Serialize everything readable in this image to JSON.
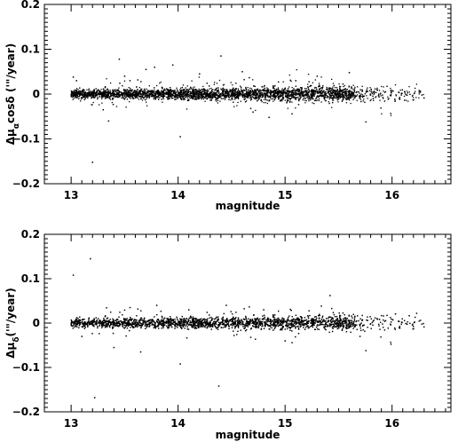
{
  "chart_data": [
    {
      "type": "scatter",
      "xlabel": "magnitude",
      "ylabel_main": "Δμ",
      "ylabel_sub": "α",
      "ylabel_rest": "cosδ ('\"/year)",
      "xlim": [
        12.75,
        16.55
      ],
      "ylim": [
        -0.2,
        0.2
      ],
      "x_ticks": [
        13,
        14,
        15,
        16
      ],
      "x_tick_labels": [
        "13",
        "14",
        "15",
        "16"
      ],
      "y_ticks": [
        -0.2,
        -0.1,
        0,
        0.1,
        0.2
      ],
      "y_tick_labels": [
        "−0.2",
        "−0.1",
        "0",
        "0.1",
        "0.2"
      ],
      "grid": false,
      "series": [
        {
          "points": "dense band of several thousand stars from magnitude 13.0 to 16.3 centred on Δμ = 0",
          "band_center": 0,
          "band_halfwidth_at_mag13": 0.006,
          "band_halfwidth_at_mag16": 0.012,
          "mag_range": [
            13.0,
            16.3
          ],
          "outliers": [
            {
              "x": 13.02,
              "y": 0.038
            },
            {
              "x": 13.05,
              "y": 0.03
            },
            {
              "x": 13.2,
              "y": -0.152
            },
            {
              "x": 13.35,
              "y": -0.06
            },
            {
              "x": 13.45,
              "y": 0.078
            },
            {
              "x": 13.5,
              "y": 0.04
            },
            {
              "x": 13.55,
              "y": 0.03
            },
            {
              "x": 13.7,
              "y": 0.055
            },
            {
              "x": 13.78,
              "y": 0.06
            },
            {
              "x": 13.95,
              "y": 0.065
            },
            {
              "x": 14.02,
              "y": -0.095
            },
            {
              "x": 14.2,
              "y": 0.045
            },
            {
              "x": 14.4,
              "y": 0.085
            },
            {
              "x": 14.6,
              "y": 0.05
            },
            {
              "x": 14.85,
              "y": -0.052
            },
            {
              "x": 15.3,
              "y": 0.04
            },
            {
              "x": 15.6,
              "y": 0.048
            },
            {
              "x": 13.3,
              "y": -0.035
            },
            {
              "x": 14.7,
              "y": -0.04
            },
            {
              "x": 15.1,
              "y": 0.03
            }
          ]
        }
      ]
    },
    {
      "type": "scatter",
      "xlabel": "magnitude",
      "ylabel_main": "Δμ",
      "ylabel_sub": "δ",
      "ylabel_rest": "('\"/year)",
      "xlim": [
        12.75,
        16.55
      ],
      "ylim": [
        -0.2,
        0.2
      ],
      "x_ticks": [
        13,
        14,
        15,
        16
      ],
      "x_tick_labels": [
        "13",
        "14",
        "15",
        "16"
      ],
      "y_ticks": [
        -0.2,
        -0.1,
        0,
        0.1,
        0.2
      ],
      "y_tick_labels": [
        "−0.2",
        "−0.1",
        "0",
        "0.1",
        "0.2"
      ],
      "grid": false,
      "series": [
        {
          "points": "dense band of several thousand stars from magnitude 13.0 to 16.3 centred on Δμ = 0",
          "band_center": 0,
          "band_halfwidth_at_mag13": 0.006,
          "band_halfwidth_at_mag16": 0.012,
          "mag_range": [
            13.0,
            16.3
          ],
          "outliers": [
            {
              "x": 13.02,
              "y": 0.108
            },
            {
              "x": 13.18,
              "y": 0.145
            },
            {
              "x": 13.22,
              "y": -0.168
            },
            {
              "x": 13.4,
              "y": -0.055
            },
            {
              "x": 13.55,
              "y": 0.035
            },
            {
              "x": 13.65,
              "y": -0.065
            },
            {
              "x": 13.8,
              "y": 0.04
            },
            {
              "x": 14.02,
              "y": -0.092
            },
            {
              "x": 14.1,
              "y": 0.03
            },
            {
              "x": 14.38,
              "y": -0.142
            },
            {
              "x": 14.45,
              "y": 0.04
            },
            {
              "x": 15.42,
              "y": 0.062
            },
            {
              "x": 15.0,
              "y": -0.04
            },
            {
              "x": 13.1,
              "y": -0.03
            },
            {
              "x": 14.8,
              "y": 0.03
            },
            {
              "x": 15.7,
              "y": -0.03
            }
          ]
        }
      ]
    }
  ]
}
